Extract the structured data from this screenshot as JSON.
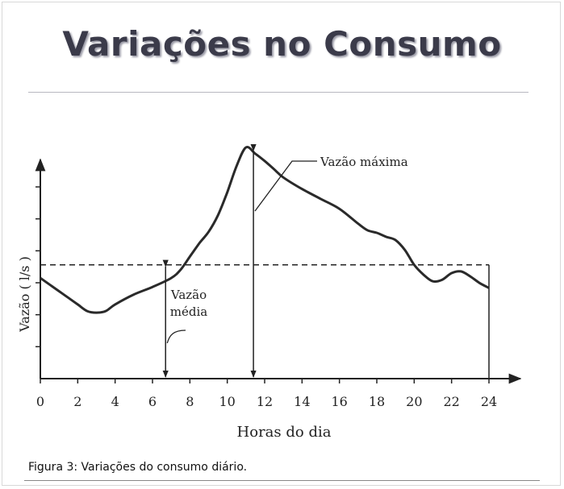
{
  "slide": {
    "title": "Variações no Consumo",
    "caption": "Figura 3: Variações do consumo diário."
  },
  "chart_data": {
    "type": "line",
    "xlabel": "Horas do dia",
    "ylabel": "Vazão ( l/s )",
    "xlim": [
      0,
      24
    ],
    "ylim": [
      0,
      10
    ],
    "xticks": [
      "0",
      "2",
      "4",
      "6",
      "8",
      "10",
      "12",
      "14",
      "16",
      "18",
      "20",
      "22",
      "24"
    ],
    "yticks_count": 6,
    "grid": false,
    "legend": "none",
    "series": [
      {
        "x": [
          0,
          0.5,
          1,
          1.5,
          2,
          2.5,
          3,
          3.5,
          4,
          5,
          6,
          7,
          7.5,
          8,
          8.5,
          9,
          9.5,
          10,
          10.5,
          11,
          11.5,
          12,
          12.5,
          13,
          14,
          15,
          16,
          17,
          17.5,
          18,
          18.5,
          19,
          19.5,
          20,
          20.5,
          21,
          21.5,
          22,
          22.5,
          23,
          23.5,
          24
        ],
        "y": [
          3.05,
          2.85,
          2.65,
          2.45,
          2.25,
          2.05,
          2.0,
          2.05,
          2.25,
          2.55,
          2.78,
          3.05,
          3.3,
          3.7,
          4.1,
          4.45,
          4.95,
          5.65,
          6.45,
          7.01,
          6.82,
          6.6,
          6.35,
          6.1,
          5.75,
          5.45,
          5.15,
          4.7,
          4.5,
          4.42,
          4.3,
          4.2,
          3.9,
          3.45,
          3.15,
          2.95,
          3.0,
          3.2,
          3.25,
          3.1,
          2.9,
          2.75
        ]
      }
    ],
    "average_flow": 3.45,
    "annotations": {
      "max_label": "Vazão máxima",
      "avg_label_line1": "Vazão",
      "avg_label_line2": "média"
    },
    "markers": {
      "avg_arrow_x": 6.7,
      "max_arrow_x": 11.4,
      "end_line_x": 24
    }
  }
}
